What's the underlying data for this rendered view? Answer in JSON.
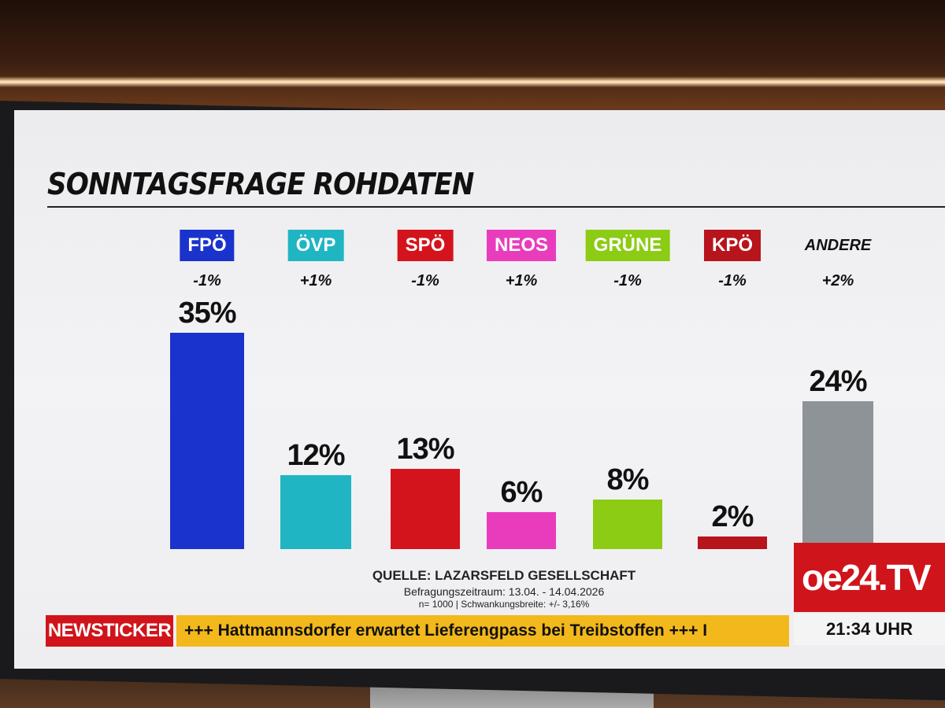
{
  "chart_data": {
    "type": "bar",
    "title": "SONNTAGSFRAGE ROHDATEN",
    "categories": [
      "FPÖ",
      "ÖVP",
      "SPÖ",
      "NEOS",
      "GRÜNE",
      "KPÖ",
      "ANDERE"
    ],
    "values": [
      35,
      12,
      13,
      6,
      8,
      2,
      24
    ],
    "value_labels": [
      "35%",
      "12%",
      "13%",
      "6%",
      "8%",
      "2%",
      "24%"
    ],
    "changes": [
      "-1%",
      "+1%",
      "-1%",
      "+1%",
      "-1%",
      "-1%",
      "+2%"
    ],
    "colors": [
      "#1a33cc",
      "#1fb5c2",
      "#d4141c",
      "#e93cbd",
      "#8ccc14",
      "#b8141c",
      "#8e9397"
    ],
    "unit": "%",
    "grid": false,
    "legend": "none"
  },
  "source": {
    "line1": "QUELLE: LAZARSFELD GESELLSCHAFT",
    "line2": "Befragungszeitraum: 13.04. - 14.04.2026",
    "line3": "n= 1000 | Schwankungsbreite: +/- 3,16%"
  },
  "ticker": {
    "label": "NEWSTICKER",
    "text": "+++ Hattmannsdorfer erwartet Lieferengpass bei Treibstoffen +++ I"
  },
  "brand": {
    "logo": "oe24.TV",
    "time": "21:34 UHR"
  }
}
